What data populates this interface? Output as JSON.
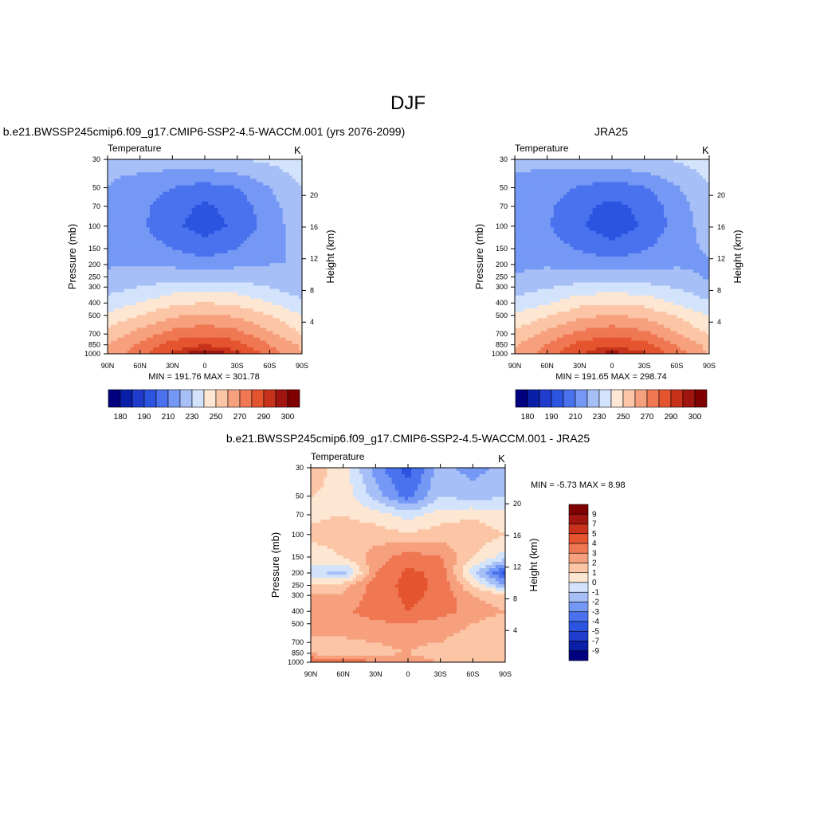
{
  "page": {
    "title": "DJF"
  },
  "colors": {
    "abs": [
      "#00007f",
      "#0a1fa8",
      "#1f3ccc",
      "#2b55e0",
      "#4a72ee",
      "#7598f5",
      "#a6c0f7",
      "#d2e3fb",
      "#fde6d2",
      "#fbc5a6",
      "#f6a07e",
      "#ef7853",
      "#e4542f",
      "#c8321a",
      "#a11510",
      "#7f0000"
    ],
    "diff": [
      "#00007f",
      "#0a1fa8",
      "#1f3ccc",
      "#2b55e0",
      "#4a72ee",
      "#7598f5",
      "#a6c0f7",
      "#d2e3fb",
      "#fde6d2",
      "#fbc5a6",
      "#f6a07e",
      "#ef7853",
      "#e4542f",
      "#c8321a",
      "#a11510",
      "#7f0000"
    ]
  },
  "panels": [
    {
      "title": "b.e21.BWSSP245cmip6.f09_g17.CMIP6-SSP2-4.5-WACCM.001 (yrs 2076-2099)",
      "field": "Temperature",
      "units": "K",
      "stats": "MIN = 191.76  MAX = 301.78"
    },
    {
      "title": "JRA25",
      "field": "Temperature",
      "units": "K",
      "stats": "MIN = 191.65  MAX = 298.74"
    },
    {
      "title": "b.e21.BWSSP245cmip6.f09_g17.CMIP6-SSP2-4.5-WACCM.001 - JRA25",
      "field": "Temperature",
      "units": "K",
      "stats": "MIN =  -5.73  MAX =   8.98"
    }
  ],
  "axes": {
    "ylabel_left": "Pressure (mb)",
    "ylabel_right": "Height (km)",
    "x_ticks": [
      "90N",
      "60N",
      "30N",
      "0",
      "30S",
      "60S",
      "90S"
    ],
    "p_ticks": [
      "30",
      "50",
      "70",
      "100",
      "150",
      "200",
      "250",
      "300",
      "400",
      "500",
      "700",
      "850",
      "1000"
    ],
    "p_values": [
      30,
      50,
      70,
      100,
      150,
      200,
      250,
      300,
      400,
      500,
      700,
      850,
      1000
    ],
    "z_ticks": [
      "20",
      "16",
      "12",
      "8",
      "4"
    ],
    "z_values": [
      20,
      16,
      12,
      8,
      4
    ]
  },
  "colorbars": {
    "abs_labels": [
      "180",
      "190",
      "210",
      "230",
      "250",
      "270",
      "290",
      "300"
    ],
    "diff_labels": [
      "9",
      "7",
      "5",
      "4",
      "3",
      "2",
      "1",
      "0",
      "-1",
      "-2",
      "-3",
      "-4",
      "-5",
      "-7",
      "-9"
    ]
  },
  "chart_data": [
    {
      "type": "heatmap",
      "title": "b.e21.BWSSP245cmip6.f09_g17.CMIP6-SSP2-4.5-WACCM.001 (yrs 2076-2099)",
      "xlabel": "",
      "ylabel": "Pressure (mb)",
      "xlim": [
        -90,
        90
      ],
      "ylim": [
        30,
        1000
      ],
      "log_y": true,
      "contour_levels": [
        180,
        185,
        190,
        200,
        210,
        220,
        230,
        240,
        250,
        260,
        270,
        280,
        290,
        295,
        300
      ],
      "x": [
        -90,
        -60,
        -30,
        0,
        30,
        60,
        90
      ],
      "p": [
        30,
        50,
        70,
        100,
        150,
        200,
        250,
        300,
        400,
        500,
        700,
        850,
        1000
      ],
      "values": [
        [
          222,
          224,
          226,
          228,
          230,
          232,
          236
        ],
        [
          220,
          216,
          210,
          206,
          210,
          220,
          230
        ],
        [
          219,
          213,
          204,
          198,
          204,
          216,
          228
        ],
        [
          218,
          212,
          202,
          196,
          202,
          215,
          226
        ],
        [
          218,
          216,
          210,
          204,
          210,
          218,
          222
        ],
        [
          219,
          220,
          218,
          216,
          218,
          220,
          220
        ],
        [
          222,
          224,
          226,
          226,
          226,
          224,
          220
        ],
        [
          226,
          230,
          234,
          236,
          234,
          230,
          224
        ],
        [
          234,
          240,
          248,
          250,
          248,
          240,
          232
        ],
        [
          242,
          250,
          258,
          262,
          258,
          250,
          240
        ],
        [
          254,
          264,
          274,
          278,
          274,
          262,
          250
        ],
        [
          260,
          272,
          284,
          290,
          284,
          270,
          258
        ],
        [
          262,
          276,
          292,
          301,
          294,
          276,
          260
        ]
      ],
      "min": 191.76,
      "max": 301.78
    },
    {
      "type": "heatmap",
      "title": "JRA25",
      "xlabel": "",
      "ylabel": "Pressure (mb)",
      "xlim": [
        -90,
        90
      ],
      "ylim": [
        30,
        1000
      ],
      "log_y": true,
      "contour_levels": [
        180,
        185,
        190,
        200,
        210,
        220,
        230,
        240,
        250,
        260,
        270,
        280,
        290,
        295,
        300
      ],
      "x": [
        -90,
        -60,
        -30,
        0,
        30,
        60,
        90
      ],
      "p": [
        30,
        50,
        70,
        100,
        150,
        200,
        250,
        300,
        400,
        500,
        700,
        850,
        1000
      ],
      "values": [
        [
          221,
          223,
          225,
          227,
          229,
          231,
          235
        ],
        [
          219,
          215,
          209,
          205,
          209,
          219,
          229
        ],
        [
          218,
          212,
          203,
          197,
          203,
          215,
          227
        ],
        [
          217,
          211,
          201,
          195,
          201,
          214,
          225
        ],
        [
          217,
          215,
          209,
          203,
          209,
          217,
          221
        ],
        [
          218,
          219,
          217,
          215,
          217,
          219,
          219
        ],
        [
          221,
          223,
          225,
          225,
          225,
          223,
          219
        ],
        [
          225,
          229,
          233,
          235,
          233,
          229,
          223
        ],
        [
          233,
          239,
          247,
          249,
          247,
          239,
          231
        ],
        [
          241,
          249,
          257,
          261,
          257,
          249,
          239
        ],
        [
          253,
          263,
          273,
          277,
          273,
          261,
          249
        ],
        [
          259,
          271,
          283,
          289,
          283,
          269,
          257
        ],
        [
          261,
          275,
          290,
          298,
          292,
          275,
          259
        ]
      ],
      "min": 191.65,
      "max": 298.74
    },
    {
      "type": "heatmap",
      "title": "b.e21.BWSSP245cmip6.f09_g17.CMIP6-SSP2-4.5-WACCM.001 - JRA25",
      "xlabel": "",
      "ylabel": "Pressure (mb)",
      "xlim": [
        -90,
        90
      ],
      "ylim": [
        30,
        1000
      ],
      "log_y": true,
      "contour_levels": [
        -9,
        -7,
        -5,
        -4,
        -3,
        -2,
        -1,
        0,
        1,
        2,
        3,
        4,
        5,
        7,
        9
      ],
      "x": [
        -90,
        -60,
        -30,
        0,
        30,
        60,
        90
      ],
      "p": [
        30,
        50,
        70,
        100,
        150,
        200,
        250,
        300,
        400,
        500,
        700,
        850,
        1000
      ],
      "values": [
        [
          1.5,
          0.5,
          -2.5,
          -4.5,
          -1.5,
          -2.5,
          -1.5
        ],
        [
          1.0,
          0.8,
          -1.5,
          -3.5,
          -1.0,
          -1.5,
          -1.0
        ],
        [
          0.8,
          1.0,
          0.5,
          -0.5,
          0.5,
          0.8,
          0.2
        ],
        [
          1.2,
          1.5,
          1.5,
          1.2,
          1.5,
          1.8,
          1.0
        ],
        [
          0.5,
          1.0,
          2.5,
          3.5,
          3.0,
          1.0,
          -0.5
        ],
        [
          -0.5,
          -1.5,
          3.0,
          4.2,
          3.8,
          -0.5,
          -4.5
        ],
        [
          1.2,
          1.5,
          3.5,
          4.3,
          3.8,
          1.0,
          -2.0
        ],
        [
          2.0,
          2.2,
          3.5,
          4.2,
          3.8,
          2.0,
          1.5
        ],
        [
          2.5,
          2.8,
          3.5,
          4.0,
          3.5,
          2.5,
          2.0
        ],
        [
          2.0,
          2.5,
          2.8,
          3.0,
          2.5,
          2.0,
          1.5
        ],
        [
          2.0,
          1.8,
          2.0,
          2.2,
          2.0,
          1.5,
          1.0
        ],
        [
          1.8,
          1.5,
          1.8,
          2.0,
          1.5,
          1.8,
          1.5
        ],
        [
          4.5,
          4.0,
          3.0,
          2.5,
          2.0,
          1.5,
          1.5
        ]
      ],
      "min": -5.73,
      "max": 8.98
    }
  ]
}
